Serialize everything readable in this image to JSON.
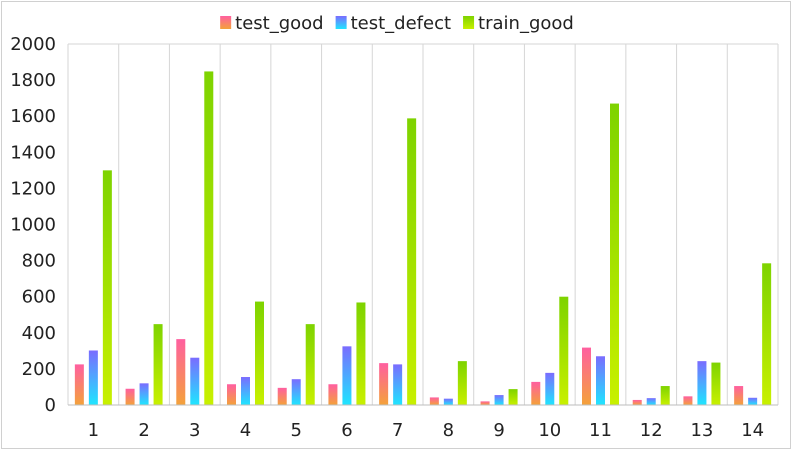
{
  "chart_data": {
    "type": "bar",
    "categories": [
      "1",
      "2",
      "3",
      "4",
      "5",
      "6",
      "7",
      "8",
      "9",
      "10",
      "11",
      "12",
      "13",
      "14"
    ],
    "series": [
      {
        "name": "test_good",
        "values": [
          225,
          90,
          365,
          115,
          95,
          115,
          232,
          42,
          20,
          128,
          318,
          28,
          48,
          105
        ],
        "gradient": [
          "#f4a23a",
          "#ff5fa0"
        ]
      },
      {
        "name": "test_defect",
        "values": [
          302,
          120,
          262,
          155,
          143,
          325,
          225,
          35,
          55,
          178,
          270,
          38,
          243,
          40
        ],
        "gradient": [
          "#1fe6ff",
          "#7a6cff"
        ]
      },
      {
        "name": "train_good",
        "values": [
          1300,
          448,
          1848,
          573,
          448,
          568,
          1588,
          243,
          88,
          600,
          1670,
          105,
          235,
          785
        ],
        "gradient": [
          "#c8f000",
          "#7ed300"
        ]
      }
    ],
    "ylim": [
      0,
      2000
    ],
    "yticks": [
      "0",
      "200",
      "400",
      "600",
      "800",
      "1000",
      "1200",
      "1400",
      "1600",
      "1800",
      "2000"
    ],
    "grid": "vertical category separators",
    "legend_position": "top"
  }
}
